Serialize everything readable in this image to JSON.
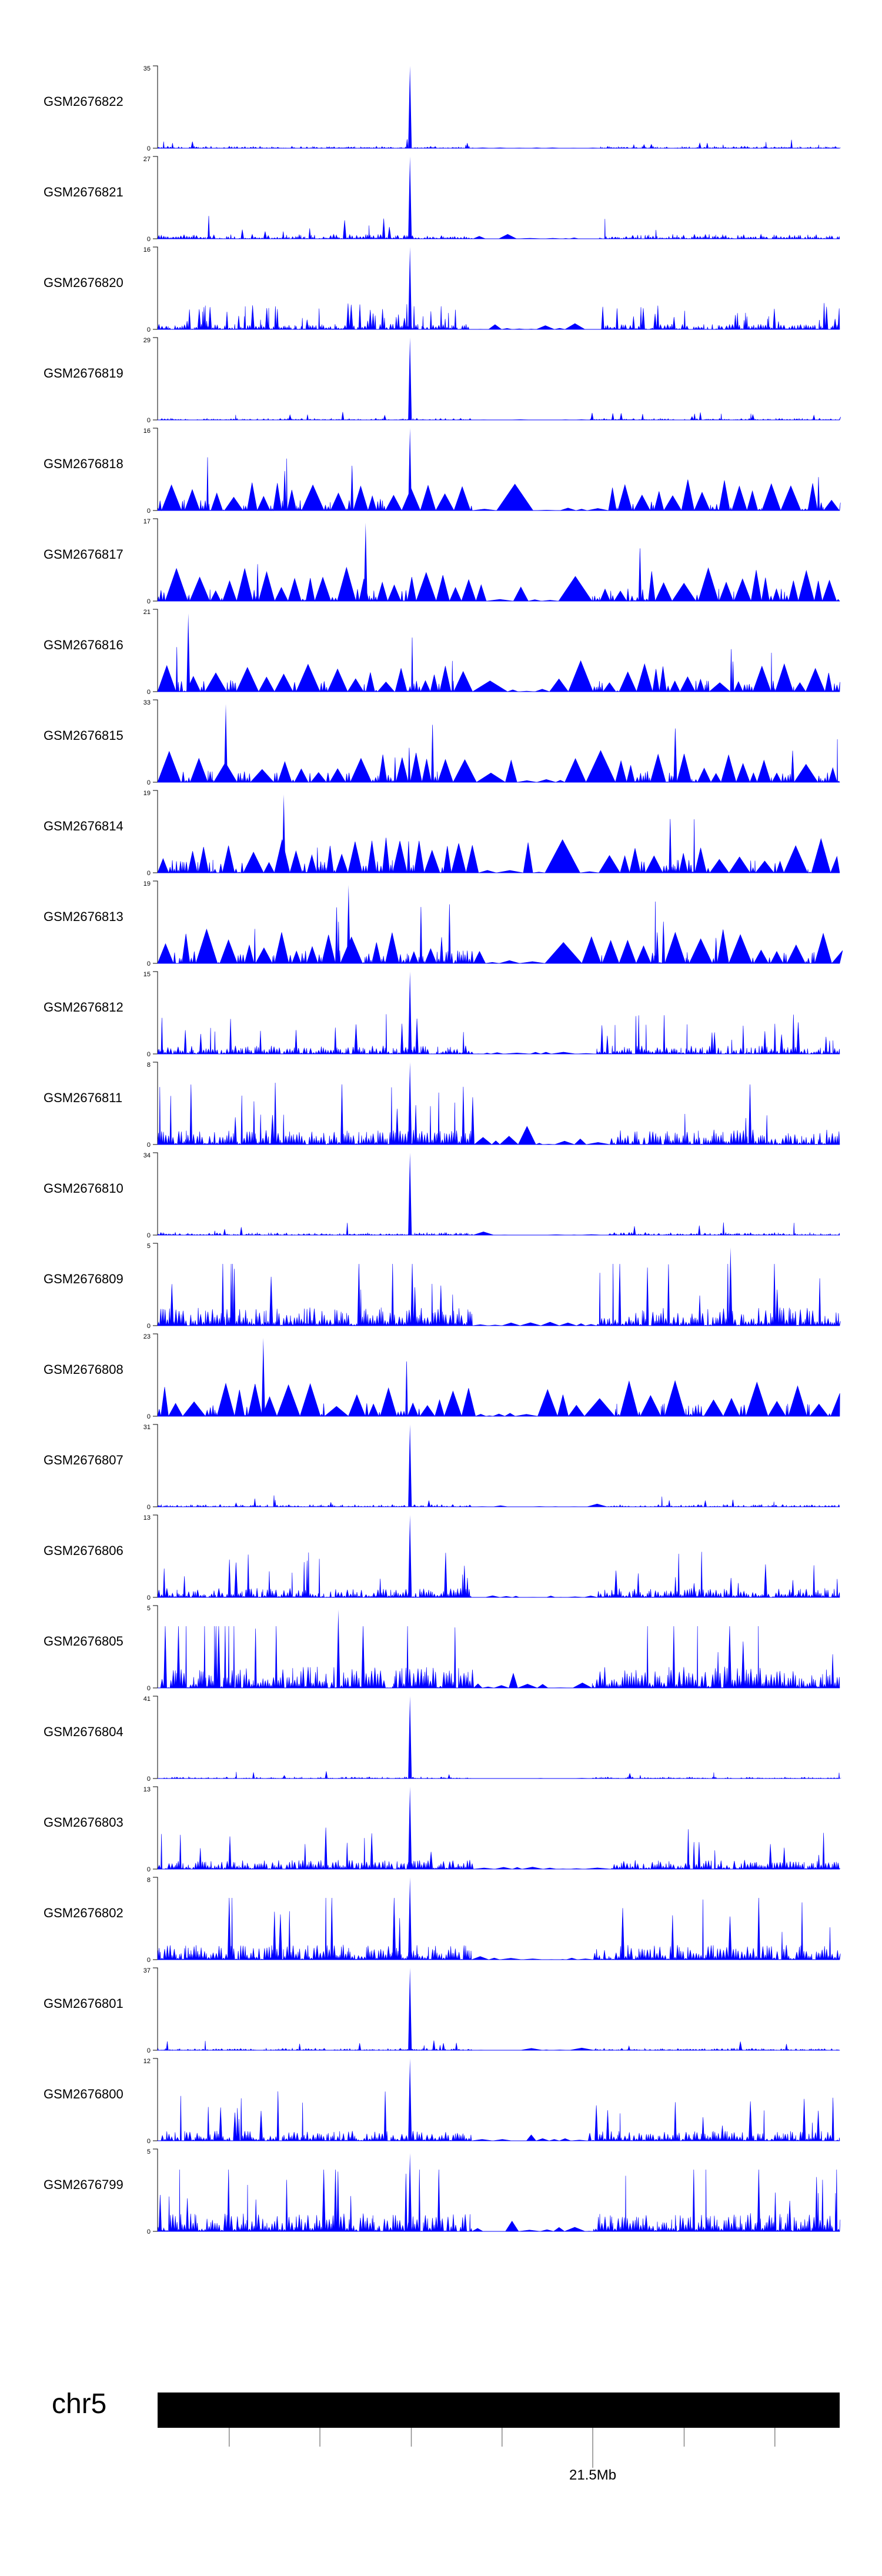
{
  "chart_data": {
    "type": "area",
    "colors": {
      "signal": "#0000ff",
      "ideogram": "#000000",
      "axis": "#000000"
    },
    "tracks": [
      {
        "name": "GSM2676822",
        "ymax": 35,
        "ymin": 0,
        "peak_rel": 1.0,
        "peak_pos": 0.37,
        "base": 0.06,
        "style": "sparse"
      },
      {
        "name": "GSM2676821",
        "ymax": 27,
        "ymin": 0,
        "peak_rel": 1.0,
        "peak_pos": 0.37,
        "base": 0.14,
        "style": "sparse"
      },
      {
        "name": "GSM2676820",
        "ymax": 16,
        "ymin": 0,
        "peak_rel": 1.0,
        "peak_pos": 0.37,
        "base": 0.16,
        "style": "dense"
      },
      {
        "name": "GSM2676819",
        "ymax": 29,
        "ymin": 0,
        "peak_rel": 1.0,
        "peak_pos": 0.37,
        "base": 0.05,
        "style": "sparse"
      },
      {
        "name": "GSM2676818",
        "ymax": 16,
        "ymin": 0,
        "peak_rel": 1.0,
        "peak_pos": 0.37,
        "base": 0.35,
        "style": "triangles"
      },
      {
        "name": "GSM2676817",
        "ymax": 17,
        "ymin": 0,
        "peak_rel": 0.95,
        "peak_pos": 0.305,
        "base": 0.38,
        "style": "triangles"
      },
      {
        "name": "GSM2676816",
        "ymax": 21,
        "ymin": 0,
        "peak_rel": 0.95,
        "peak_pos": 0.045,
        "base": 0.35,
        "style": "triangles"
      },
      {
        "name": "GSM2676815",
        "ymax": 33,
        "ymin": 0,
        "peak_rel": 0.95,
        "peak_pos": 0.1,
        "base": 0.35,
        "style": "triangles"
      },
      {
        "name": "GSM2676814",
        "ymax": 19,
        "ymin": 0,
        "peak_rel": 0.95,
        "peak_pos": 0.185,
        "base": 0.4,
        "style": "triangles"
      },
      {
        "name": "GSM2676813",
        "ymax": 19,
        "ymin": 0,
        "peak_rel": 0.95,
        "peak_pos": 0.28,
        "base": 0.4,
        "style": "triangles"
      },
      {
        "name": "GSM2676812",
        "ymax": 15,
        "ymin": 0,
        "peak_rel": 1.0,
        "peak_pos": 0.37,
        "base": 0.25,
        "style": "mixed"
      },
      {
        "name": "GSM2676811",
        "ymax": 8,
        "ymin": 0,
        "peak_rel": 1.0,
        "peak_pos": 0.37,
        "base": 0.45,
        "style": "mixed"
      },
      {
        "name": "GSM2676810",
        "ymax": 34,
        "ymin": 0,
        "peak_rel": 1.0,
        "peak_pos": 0.37,
        "base": 0.08,
        "style": "sparse"
      },
      {
        "name": "GSM2676809",
        "ymax": 5,
        "ymin": 0,
        "peak_rel": 0.95,
        "peak_pos": 0.84,
        "base": 0.55,
        "style": "mixed"
      },
      {
        "name": "GSM2676808",
        "ymax": 23,
        "ymin": 0,
        "peak_rel": 0.95,
        "peak_pos": 0.155,
        "base": 0.4,
        "style": "triangles"
      },
      {
        "name": "GSM2676807",
        "ymax": 31,
        "ymin": 0,
        "peak_rel": 1.0,
        "peak_pos": 0.37,
        "base": 0.07,
        "style": "sparse"
      },
      {
        "name": "GSM2676806",
        "ymax": 13,
        "ymin": 0,
        "peak_rel": 1.0,
        "peak_pos": 0.37,
        "base": 0.28,
        "style": "mixed"
      },
      {
        "name": "GSM2676805",
        "ymax": 5,
        "ymin": 0,
        "peak_rel": 0.95,
        "peak_pos": 0.265,
        "base": 0.65,
        "style": "mixed"
      },
      {
        "name": "GSM2676804",
        "ymax": 41,
        "ymin": 0,
        "peak_rel": 1.0,
        "peak_pos": 0.37,
        "base": 0.05,
        "style": "sparse"
      },
      {
        "name": "GSM2676803",
        "ymax": 13,
        "ymin": 0,
        "peak_rel": 1.0,
        "peak_pos": 0.37,
        "base": 0.28,
        "style": "mixed"
      },
      {
        "name": "GSM2676802",
        "ymax": 8,
        "ymin": 0,
        "peak_rel": 1.0,
        "peak_pos": 0.37,
        "base": 0.45,
        "style": "mixed"
      },
      {
        "name": "GSM2676801",
        "ymax": 37,
        "ymin": 0,
        "peak_rel": 1.0,
        "peak_pos": 0.37,
        "base": 0.06,
        "style": "sparse"
      },
      {
        "name": "GSM2676800",
        "ymax": 12,
        "ymin": 0,
        "peak_rel": 1.0,
        "peak_pos": 0.37,
        "base": 0.3,
        "style": "mixed"
      },
      {
        "name": "GSM2676799",
        "ymax": 5,
        "ymin": 0,
        "peak_rel": 0.95,
        "peak_pos": 0.37,
        "base": 0.55,
        "style": "mixed"
      }
    ],
    "gap_region": [
      0.46,
      0.63
    ],
    "ideogram": {
      "chromosome": "chr5",
      "ticks": [
        0.105,
        0.238,
        0.372,
        0.505,
        0.638,
        0.772,
        0.905
      ],
      "labeled_tick": {
        "pos": 0.638,
        "label": "21.5Mb"
      }
    }
  }
}
